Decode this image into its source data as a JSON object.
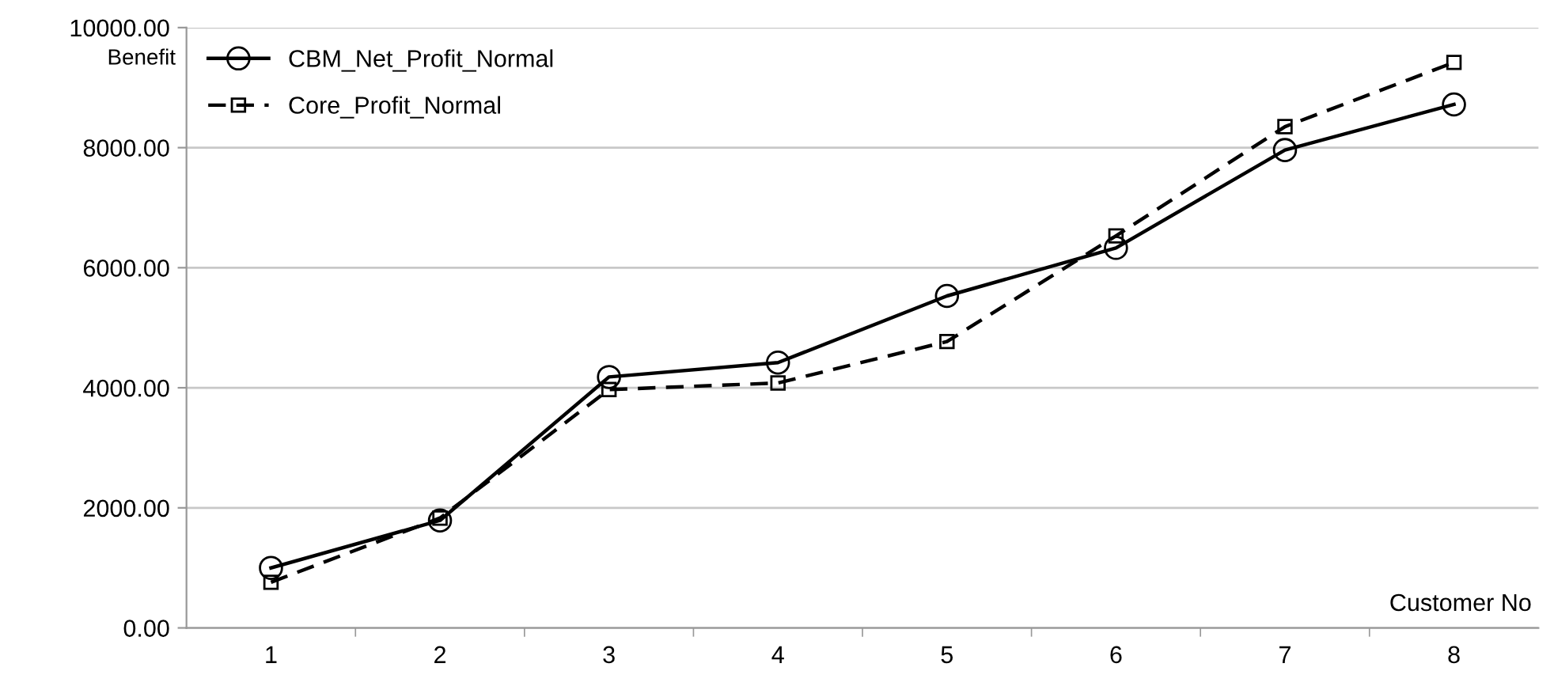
{
  "chart_data": {
    "type": "line",
    "ylabel": "Benefit",
    "xlabel": "Customer No",
    "categories": [
      "1",
      "2",
      "3",
      "4",
      "5",
      "6",
      "7",
      "8"
    ],
    "series": [
      {
        "name": "CBM_Net_Profit_Normal",
        "color": "#000000",
        "marker": "circle",
        "line_style": "solid",
        "values": [
          1000,
          1790,
          4180,
          4420,
          5530,
          6330,
          7960,
          8720
        ]
      },
      {
        "name": "Core_Profit_Normal",
        "color": "#000000",
        "marker": "square",
        "line_style": "dashed",
        "values": [
          760,
          1830,
          3970,
          4080,
          4770,
          6530,
          8350,
          9420
        ]
      }
    ],
    "ylim": [
      0,
      10000
    ],
    "yticks": [
      {
        "value": 0,
        "label": "0.00"
      },
      {
        "value": 2000,
        "label": "2000.00"
      },
      {
        "value": 4000,
        "label": "4000.00"
      },
      {
        "value": 6000,
        "label": "6000.00"
      },
      {
        "value": 8000,
        "label": "8000.00"
      },
      {
        "value": 10000,
        "label": "10000.00"
      }
    ],
    "grid": "y",
    "legend": "top left"
  }
}
